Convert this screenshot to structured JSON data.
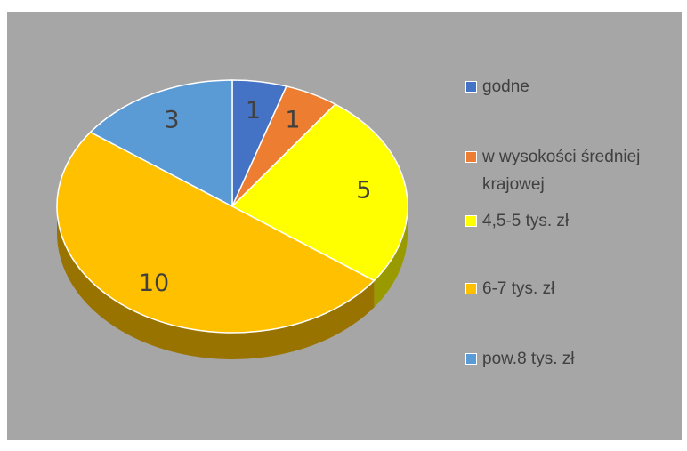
{
  "chart_data": {
    "type": "pie",
    "categories": [
      "godne",
      "w wysokości średniej krajowej",
      "4,5-5 tys. zł",
      "6-7 tys. zł",
      "pow.8 tys. zł"
    ],
    "values": [
      1,
      1,
      5,
      10,
      3
    ],
    "colors": [
      "#4472c4",
      "#ed7d31",
      "#ffff00",
      "#ffc000",
      "#5b9bd5"
    ],
    "legend": "right"
  }
}
